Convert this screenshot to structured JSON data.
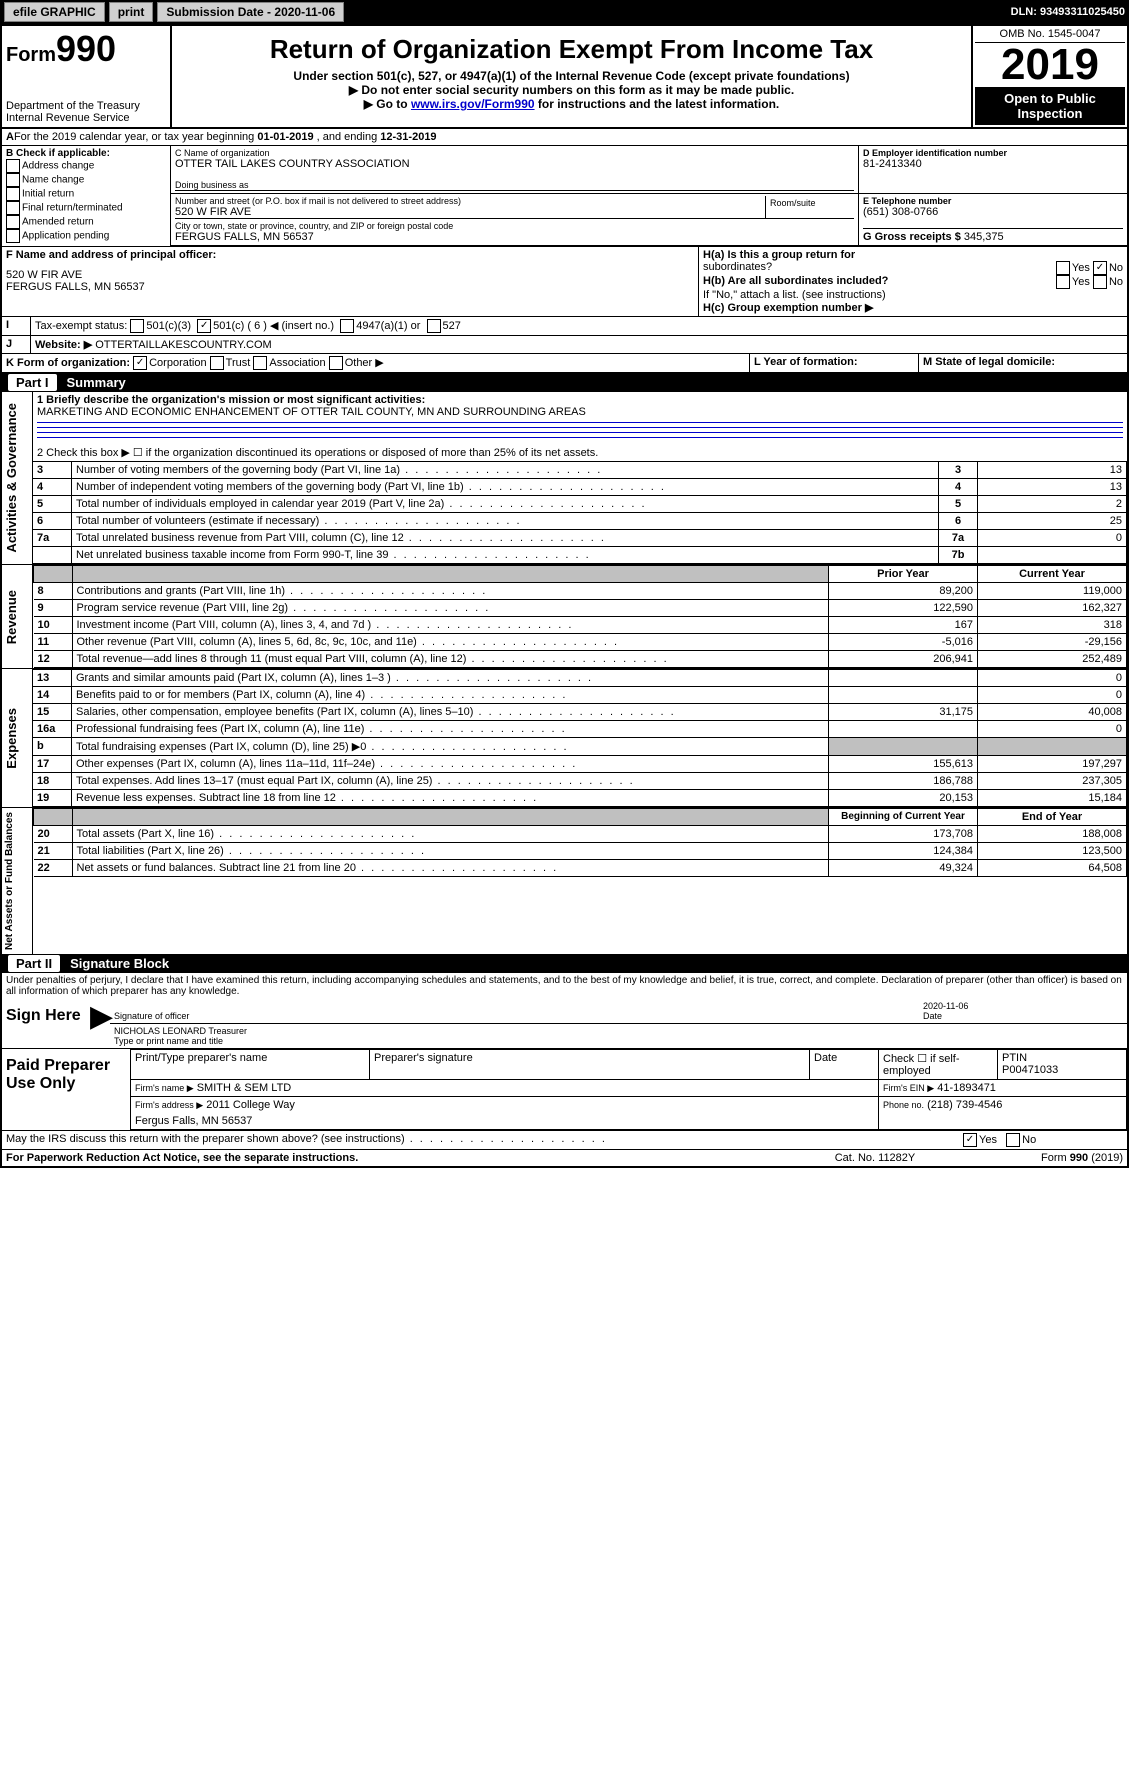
{
  "topbar": {
    "efile": "efile GRAPHIC",
    "print": "print",
    "subdate_label": "Submission Date - ",
    "subdate": "2020-11-06",
    "dln_label": "DLN: ",
    "dln": "93493311025450"
  },
  "header": {
    "form_prefix": "Form",
    "form_number": "990",
    "dept": "Department of the Treasury",
    "irs": "Internal Revenue Service",
    "title": "Return of Organization Exempt From Income Tax",
    "sub1": "Under section 501(c), 527, or 4947(a)(1) of the Internal Revenue Code (except private foundations)",
    "sub2": "▶ Do not enter social security numbers on this form as it may be made public.",
    "sub3a": "▶ Go to ",
    "sub3_link": "www.irs.gov/Form990",
    "sub3b": " for instructions and the latest information.",
    "omb": "OMB No. 1545-0047",
    "year": "2019",
    "open1": "Open to Public",
    "open2": "Inspection"
  },
  "periodA": {
    "label": "For the 2019 calendar year, or tax year beginning ",
    "begin": "01-01-2019",
    "mid": " , and ending ",
    "end": "12-31-2019"
  },
  "boxB": {
    "label": "B Check if applicable:",
    "opts": [
      "Address change",
      "Name change",
      "Initial return",
      "Final return/terminated",
      "Amended return",
      "Application pending"
    ]
  },
  "boxC": {
    "name_label": "C Name of organization",
    "name": "OTTER TAIL LAKES COUNTRY ASSOCIATION",
    "dba_label": "Doing business as",
    "addr_label": "Number and street (or P.O. box if mail is not delivered to street address)",
    "room_label": "Room/suite",
    "addr": "520 W FIR AVE",
    "city_label": "City or town, state or province, country, and ZIP or foreign postal code",
    "city": "FERGUS FALLS, MN  56537"
  },
  "boxD": {
    "label": "D Employer identification number",
    "val": "81-2413340"
  },
  "boxE": {
    "label": "E Telephone number",
    "val": "(651) 308-0766"
  },
  "boxG": {
    "label": "G Gross receipts $ ",
    "val": "345,375"
  },
  "boxF": {
    "label": "F Name and address of principal officer:",
    "line1": "520 W FIR AVE",
    "line2": "FERGUS FALLS, MN  56537"
  },
  "boxH": {
    "a_label": "H(a)  Is this a group return for",
    "a_label2": "subordinates?",
    "b_label": "H(b)  Are all subordinates included?",
    "b_note": "If \"No,\" attach a list. (see instructions)",
    "c_label": "H(c)  Group exemption number ▶",
    "yes": "Yes",
    "no": "No"
  },
  "boxI": {
    "label": "Tax-exempt status:",
    "o1": "501(c)(3)",
    "o2": "501(c) ( 6 ) ◀ (insert no.)",
    "o3": "4947(a)(1) or",
    "o4": "527"
  },
  "boxJ": {
    "label": "Website: ▶",
    "val": "OTTERTAILLAKESCOUNTRY.COM"
  },
  "boxK": {
    "label": "K Form of organization:",
    "o1": "Corporation",
    "o2": "Trust",
    "o3": "Association",
    "o4": "Other ▶"
  },
  "boxL": {
    "label": "L Year of formation:"
  },
  "boxM": {
    "label": "M State of legal domicile:"
  },
  "part1": {
    "title": "Summary",
    "q1_label": "1  Briefly describe the organization's mission or most significant activities:",
    "q1_val": "MARKETING AND ECONOMIC ENHANCEMENT OF OTTER TAIL COUNTY, MN AND SURROUNDING AREAS",
    "q2": "2   Check this box ▶ ☐  if the organization discontinued its operations or disposed of more than 25% of its net assets.",
    "side_act": "Activities & Governance",
    "side_rev": "Revenue",
    "side_exp": "Expenses",
    "side_net": "Net Assets or Fund Balances",
    "rows_top": [
      {
        "n": "3",
        "label": "Number of voting members of the governing body (Part VI, line 1a)",
        "box": "3",
        "val": "13"
      },
      {
        "n": "4",
        "label": "Number of independent voting members of the governing body (Part VI, line 1b)",
        "box": "4",
        "val": "13"
      },
      {
        "n": "5",
        "label": "Total number of individuals employed in calendar year 2019 (Part V, line 2a)",
        "box": "5",
        "val": "2"
      },
      {
        "n": "6",
        "label": "Total number of volunteers (estimate if necessary)",
        "box": "6",
        "val": "25"
      },
      {
        "n": "7a",
        "label": "Total unrelated business revenue from Part VIII, column (C), line 12",
        "box": "7a",
        "val": "0"
      },
      {
        "n": "",
        "label": "Net unrelated business taxable income from Form 990-T, line 39",
        "box": "7b",
        "val": ""
      }
    ],
    "hdr_prior": "Prior Year",
    "hdr_curr": "Current Year",
    "rows_rev": [
      {
        "n": "8",
        "label": "Contributions and grants (Part VIII, line 1h)",
        "p": "89,200",
        "c": "119,000"
      },
      {
        "n": "9",
        "label": "Program service revenue (Part VIII, line 2g)",
        "p": "122,590",
        "c": "162,327"
      },
      {
        "n": "10",
        "label": "Investment income (Part VIII, column (A), lines 3, 4, and 7d )",
        "p": "167",
        "c": "318"
      },
      {
        "n": "11",
        "label": "Other revenue (Part VIII, column (A), lines 5, 6d, 8c, 9c, 10c, and 11e)",
        "p": "-5,016",
        "c": "-29,156"
      },
      {
        "n": "12",
        "label": "Total revenue—add lines 8 through 11 (must equal Part VIII, column (A), line 12)",
        "p": "206,941",
        "c": "252,489"
      }
    ],
    "rows_exp": [
      {
        "n": "13",
        "label": "Grants and similar amounts paid (Part IX, column (A), lines 1–3 )",
        "p": "",
        "c": "0"
      },
      {
        "n": "14",
        "label": "Benefits paid to or for members (Part IX, column (A), line 4)",
        "p": "",
        "c": "0"
      },
      {
        "n": "15",
        "label": "Salaries, other compensation, employee benefits (Part IX, column (A), lines 5–10)",
        "p": "31,175",
        "c": "40,008"
      },
      {
        "n": "16a",
        "label": "Professional fundraising fees (Part IX, column (A), line 11e)",
        "p": "",
        "c": "0"
      },
      {
        "n": "b",
        "label": "Total fundraising expenses (Part IX, column (D), line 25) ▶0",
        "p": "GREY",
        "c": "GREY"
      },
      {
        "n": "17",
        "label": "Other expenses (Part IX, column (A), lines 11a–11d, 11f–24e)",
        "p": "155,613",
        "c": "197,297"
      },
      {
        "n": "18",
        "label": "Total expenses. Add lines 13–17 (must equal Part IX, column (A), line 25)",
        "p": "186,788",
        "c": "237,305"
      },
      {
        "n": "19",
        "label": "Revenue less expenses. Subtract line 18 from line 12",
        "p": "20,153",
        "c": "15,184"
      }
    ],
    "hdr_beg": "Beginning of Current Year",
    "hdr_end": "End of Year",
    "rows_net": [
      {
        "n": "20",
        "label": "Total assets (Part X, line 16)",
        "p": "173,708",
        "c": "188,008"
      },
      {
        "n": "21",
        "label": "Total liabilities (Part X, line 26)",
        "p": "124,384",
        "c": "123,500"
      },
      {
        "n": "22",
        "label": "Net assets or fund balances. Subtract line 21 from line 20",
        "p": "49,324",
        "c": "64,508"
      }
    ]
  },
  "part2": {
    "title": "Signature Block",
    "decl": "Under penalties of perjury, I declare that I have examined this return, including accompanying schedules and statements, and to the best of my knowledge and belief, it is true, correct, and complete. Declaration of preparer (other than officer) is based on all information of which preparer has any knowledge.",
    "sign_here": "Sign Here",
    "sig_off": "Signature of officer",
    "sig_date": "2020-11-06",
    "date": "Date",
    "officer": "NICHOLAS LEONARD Treasurer",
    "type_name": "Type or print name and title",
    "paid": "Paid Preparer Use Only",
    "prep_name_l": "Print/Type preparer's name",
    "prep_sig_l": "Preparer's signature",
    "date_l": "Date",
    "self_emp": "Check ☐ if self-employed",
    "ptin_l": "PTIN",
    "ptin": "P00471033",
    "firm_l": "Firm's name   ▶",
    "firm": "SMITH & SEM LTD",
    "ein_l": "Firm's EIN ▶",
    "ein": "41-1893471",
    "addr_l": "Firm's address ▶",
    "addr": "2011 College Way",
    "addr2": "Fergus Falls, MN  56537",
    "phone_l": "Phone no.",
    "phone": "(218) 739-4546",
    "discuss": "May the IRS discuss this return with the preparer shown above? (see instructions)",
    "yes": "Yes",
    "no": "No"
  },
  "footer": {
    "pra": "For Paperwork Reduction Act Notice, see the separate instructions.",
    "cat": "Cat. No. 11282Y",
    "form": "Form 990 (2019)"
  }
}
